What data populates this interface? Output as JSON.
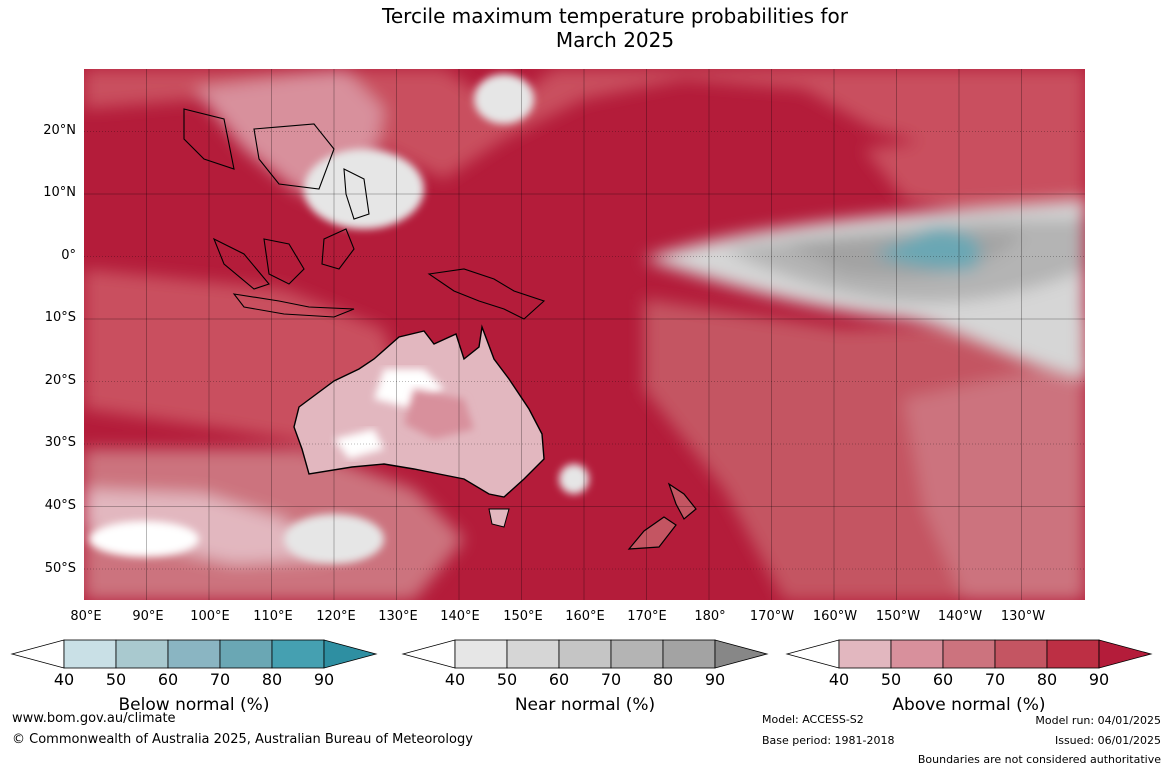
{
  "title": {
    "line1": "Tercile maximum temperature probabilities for",
    "line2": "March 2025"
  },
  "map": {
    "projection": "equirectangular",
    "extent": {
      "lon": [
        80,
        240
      ],
      "lat": [
        -55,
        30
      ]
    },
    "lat_labels": [
      "20°N",
      "10°N",
      "0°",
      "10°S",
      "20°S",
      "30°S",
      "40°S",
      "50°S"
    ],
    "lon_labels": [
      "80°E",
      "90°E",
      "100°E",
      "110°E",
      "120°E",
      "130°E",
      "140°E",
      "150°E",
      "160°E",
      "170°E",
      "180°",
      "170°W",
      "160°W",
      "150°W",
      "140°W",
      "130°W"
    ],
    "gridlines": true,
    "dominant_category": "Above normal 90%"
  },
  "legends": [
    {
      "label": "Below normal (%)",
      "ticks": [
        "40",
        "50",
        "60",
        "70",
        "80",
        "90"
      ],
      "colors": [
        "#ffffff",
        "#c9e0e6",
        "#a9c9cf",
        "#8ab5c2",
        "#6aa7b4",
        "#45a0b1",
        "#2e8fa2"
      ]
    },
    {
      "label": "Near normal (%)",
      "ticks": [
        "40",
        "50",
        "60",
        "70",
        "80",
        "90"
      ],
      "colors": [
        "#ffffff",
        "#e6e6e6",
        "#d6d6d6",
        "#c5c5c5",
        "#b4b4b4",
        "#a3a3a3",
        "#878787"
      ]
    },
    {
      "label": "Above normal (%)",
      "ticks": [
        "40",
        "50",
        "60",
        "70",
        "80",
        "90"
      ],
      "colors": [
        "#ffffff",
        "#e2b7bf",
        "#d8909c",
        "#cc737e",
        "#c45562",
        "#bd2f44",
        "#b41c3a"
      ]
    }
  ],
  "footer": {
    "website": "www.bom.gov.au/climate",
    "copyright": "© Commonwealth of Australia 2025, Australian Bureau of Meteorology",
    "model": "Model: ACCESS-S2",
    "base_period": "Base period: 1981-2018",
    "model_run": "Model run: 04/01/2025",
    "issued": "Issued: 06/01/2025",
    "disclaimer": "Boundaries are not considered authoritative"
  }
}
